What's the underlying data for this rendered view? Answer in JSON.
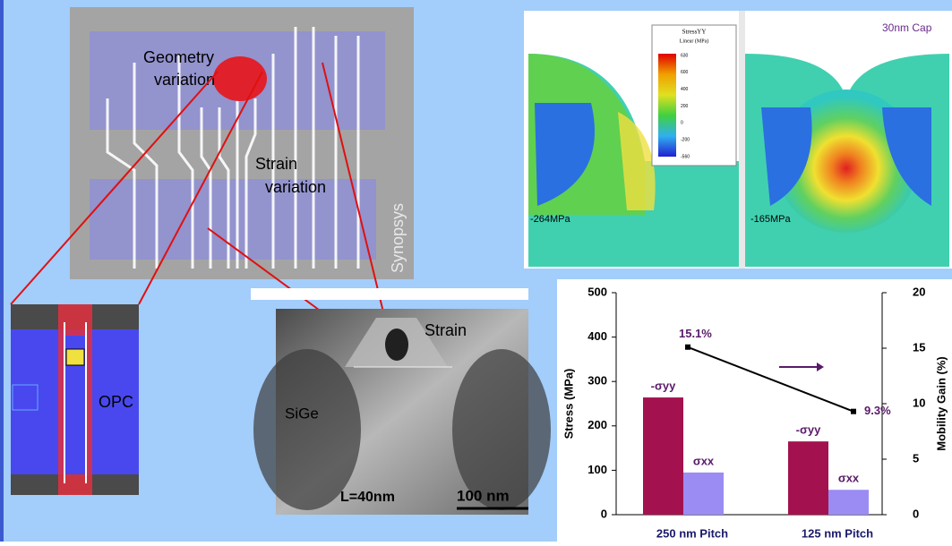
{
  "layout": {
    "geometry_label": [
      "Geometry",
      "variation"
    ],
    "strain_label": [
      "Strain",
      "variation"
    ],
    "credit": "Synopsys"
  },
  "opc": {
    "label": "OPC"
  },
  "tem": {
    "strain_label": "Strain",
    "sige_label": "SiGe",
    "gate_length": "L=40nm",
    "scale_bar": "100 nm"
  },
  "simulation": {
    "legend_title": "StressYY",
    "legend_unit": "Linear (MPa)",
    "legend_ticks": [
      "630",
      "600",
      "400",
      "200",
      "0",
      "-200",
      "-560"
    ],
    "cap_label": "30nm Cap",
    "left_stress": "-264MPa",
    "right_stress": "-165MPa"
  },
  "chart_data": {
    "type": "bar",
    "categories": [
      "250 nm Pitch",
      "125 nm Pitch"
    ],
    "series": [
      {
        "name": "-σyy",
        "color": "#a3124e",
        "values": [
          264,
          165
        ]
      },
      {
        "name": "σxx",
        "color": "#9a8cf2",
        "values": [
          95,
          56
        ]
      },
      {
        "type": "line",
        "axis": "y2",
        "color": "#000000",
        "values": [
          15.1,
          9.3
        ],
        "value_labels": [
          "15.1%",
          "9.3%"
        ]
      }
    ],
    "ylabel": "Stress (MPa)",
    "y2label": "Mobility Gain (%)",
    "ylim": [
      0,
      500
    ],
    "yticks": [
      0,
      100,
      200,
      300,
      400,
      500
    ],
    "y2lim": [
      0,
      20
    ],
    "y2ticks": [
      0,
      5,
      10,
      15,
      20
    ]
  }
}
